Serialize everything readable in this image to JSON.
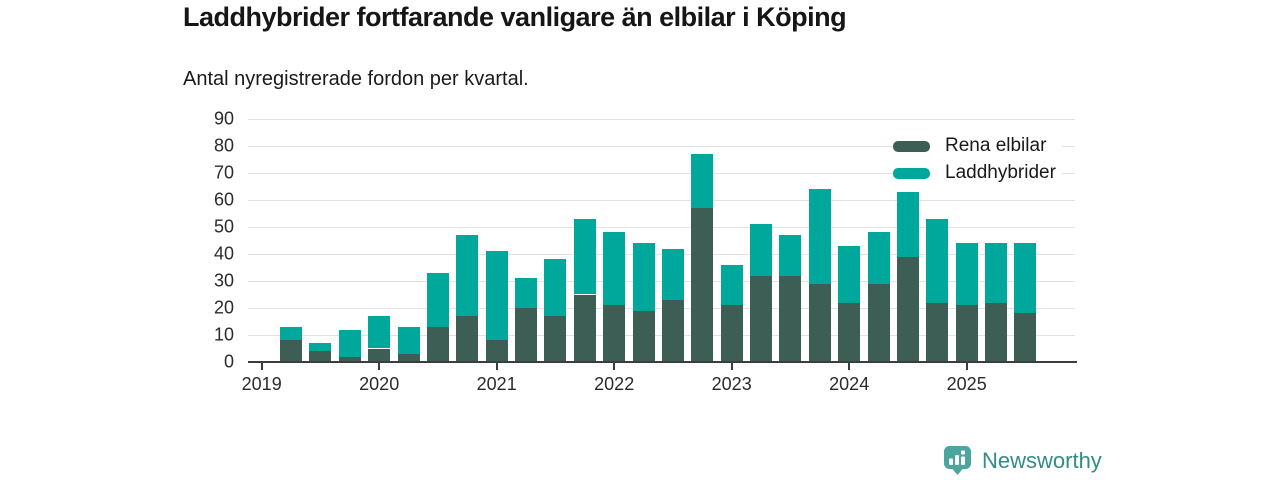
{
  "title": "Laddhybrider fortfarande vanligare än elbilar i Köping",
  "subtitle": "Antal nyregistrerade fordon per kvartal.",
  "legend": [
    {
      "label": "Rena elbilar",
      "color": "#3c5e55"
    },
    {
      "label": "Laddhybrider",
      "color": "#00a79b"
    }
  ],
  "footer": {
    "brand": "Newsworthy",
    "brand_color": "#338c86",
    "icon": "newsworthy-bar-chart-bubble-icon",
    "icon_color": "#4aa69f"
  },
  "colors": {
    "elbilar_dark_teal": "#3c5e55",
    "laddhybrider_teal": "#00a79b",
    "gridline": "#e2e2e2",
    "axis": "#3d3d3d",
    "background": "#ffffff"
  },
  "chart_data": {
    "type": "bar",
    "stacked": true,
    "title": "Laddhybrider fortfarande vanligare än elbilar i Köping",
    "subtitle": "Antal nyregistrerade fordon per kvartal.",
    "xlabel": "",
    "ylabel": "",
    "ylim": [
      0,
      90
    ],
    "y_ticks": [
      0,
      10,
      20,
      30,
      40,
      50,
      60,
      70,
      80,
      90
    ],
    "grid": "horizontal",
    "legend_position": "top-right",
    "x_axis_tick_labels": [
      "2019",
      "2020",
      "2021",
      "2022",
      "2023",
      "2024",
      "2025"
    ],
    "quarters": [
      "2019-Q2",
      "2019-Q3",
      "2019-Q4",
      "2020-Q1",
      "2020-Q2",
      "2020-Q3",
      "2020-Q4",
      "2021-Q1",
      "2021-Q2",
      "2021-Q3",
      "2021-Q4",
      "2022-Q1",
      "2022-Q2",
      "2022-Q3",
      "2022-Q4",
      "2023-Q1",
      "2023-Q2",
      "2023-Q3",
      "2023-Q4",
      "2024-Q1",
      "2024-Q2",
      "2024-Q3",
      "2024-Q4",
      "2025-Q1",
      "2025-Q2",
      "2025-Q3"
    ],
    "series": [
      {
        "name": "Rena elbilar",
        "color": "#3c5e55",
        "values": [
          8,
          4,
          2,
          5,
          3,
          13,
          17,
          8,
          20,
          17,
          25,
          21,
          19,
          23,
          57,
          21,
          32,
          32,
          29,
          22,
          29,
          39,
          22,
          21,
          22,
          18
        ]
      },
      {
        "name": "Laddhybrider",
        "color": "#00a79b",
        "values": [
          5,
          3,
          10,
          12,
          10,
          20,
          30,
          33,
          11,
          21,
          28,
          27,
          25,
          19,
          20,
          15,
          19,
          15,
          35,
          21,
          19,
          24,
          31,
          23,
          22,
          26
        ]
      }
    ],
    "totals": [
      13,
      7,
      12,
      17,
      13,
      33,
      47,
      41,
      31,
      38,
      53,
      48,
      44,
      42,
      77,
      36,
      51,
      47,
      64,
      43,
      48,
      63,
      53,
      44,
      44,
      44
    ]
  }
}
